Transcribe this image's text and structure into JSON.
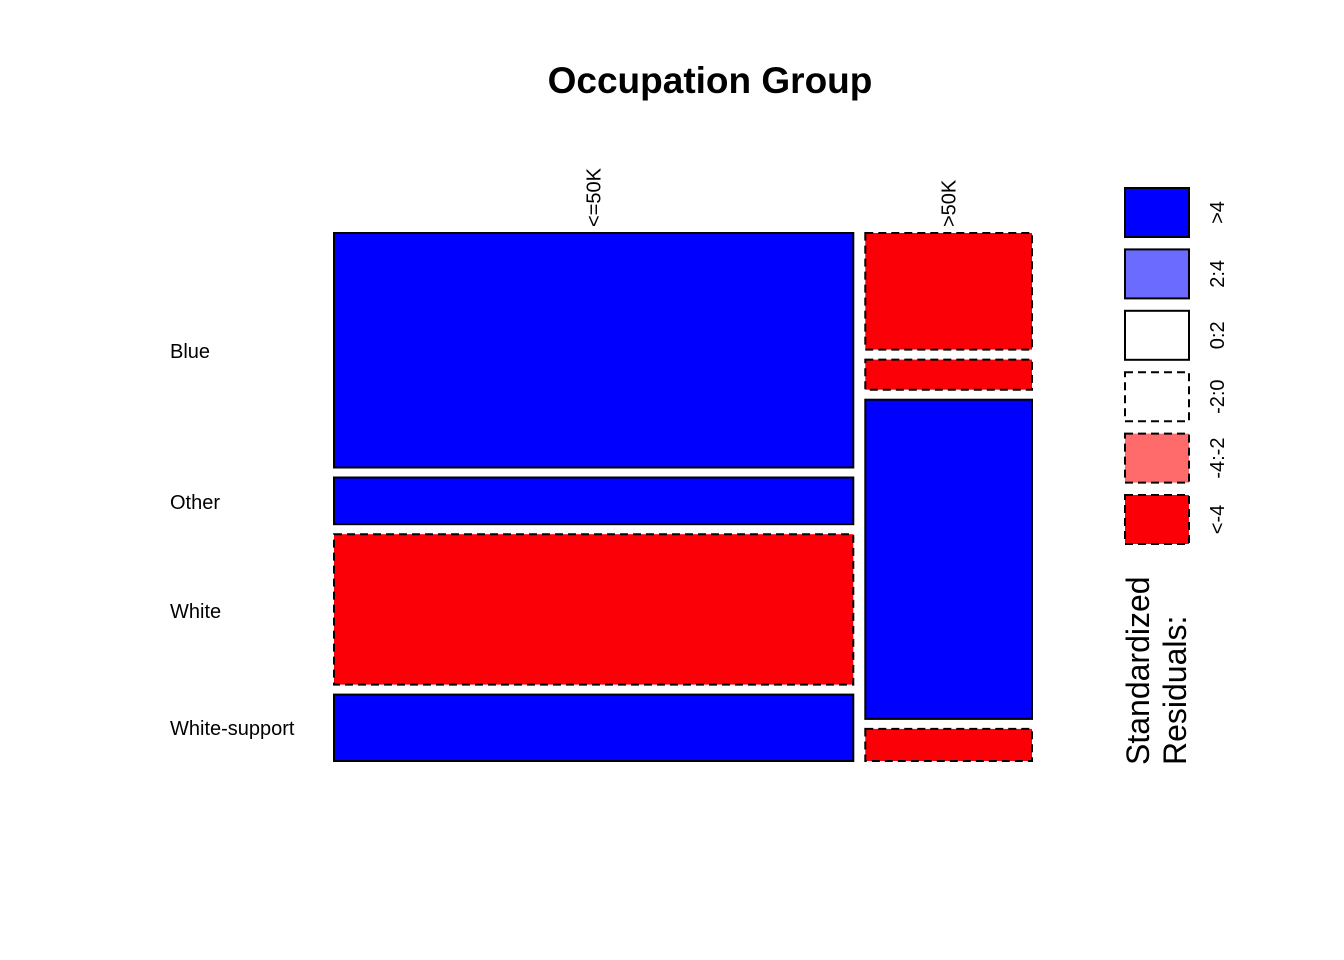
{
  "chart_data": {
    "type": "mosaic",
    "title": "Occupation Group",
    "columns": [
      "<=50K",
      ">50K"
    ],
    "column_widths": [
      0.757,
      0.243
    ],
    "rows": [
      "Blue",
      "Other",
      "White",
      "White-support"
    ],
    "cells": [
      {
        "column": "<=50K",
        "row": "Blue",
        "proportion": 0.452,
        "residual_class": ">4"
      },
      {
        "column": "<=50K",
        "row": "Other",
        "proportion": 0.09,
        "residual_class": ">4"
      },
      {
        "column": "<=50K",
        "row": "White",
        "proportion": 0.29,
        "residual_class": "<-4"
      },
      {
        "column": "<=50K",
        "row": "White-support",
        "proportion": 0.128,
        "residual_class": ">4"
      },
      {
        "column": ">50K",
        "row": "Blue",
        "proportion": 0.225,
        "residual_class": "<-4"
      },
      {
        "column": ">50K",
        "row": "Other",
        "proportion": 0.058,
        "residual_class": "<-4"
      },
      {
        "column": ">50K",
        "row": "White",
        "proportion": 0.616,
        "residual_class": ">4"
      },
      {
        "column": ">50K",
        "row": "White-support",
        "proportion": 0.062,
        "residual_class": "<-4"
      }
    ],
    "legend": {
      "title_line1": "Standardized",
      "title_line2": "Residuals:",
      "entries": [
        {
          "label": ">4",
          "color": "#0000ff",
          "dashed": false
        },
        {
          "label": "2:4",
          "color": "#6b6bff",
          "dashed": false
        },
        {
          "label": "0:2",
          "color": "#ffffff",
          "dashed": false
        },
        {
          "label": "-2:0",
          "color": "#ffffff",
          "dashed": true
        },
        {
          "label": "-4:-2",
          "color": "#ff6b6b",
          "dashed": true
        },
        {
          "label": "<-4",
          "color": "#fb0007",
          "dashed": true
        }
      ]
    }
  }
}
